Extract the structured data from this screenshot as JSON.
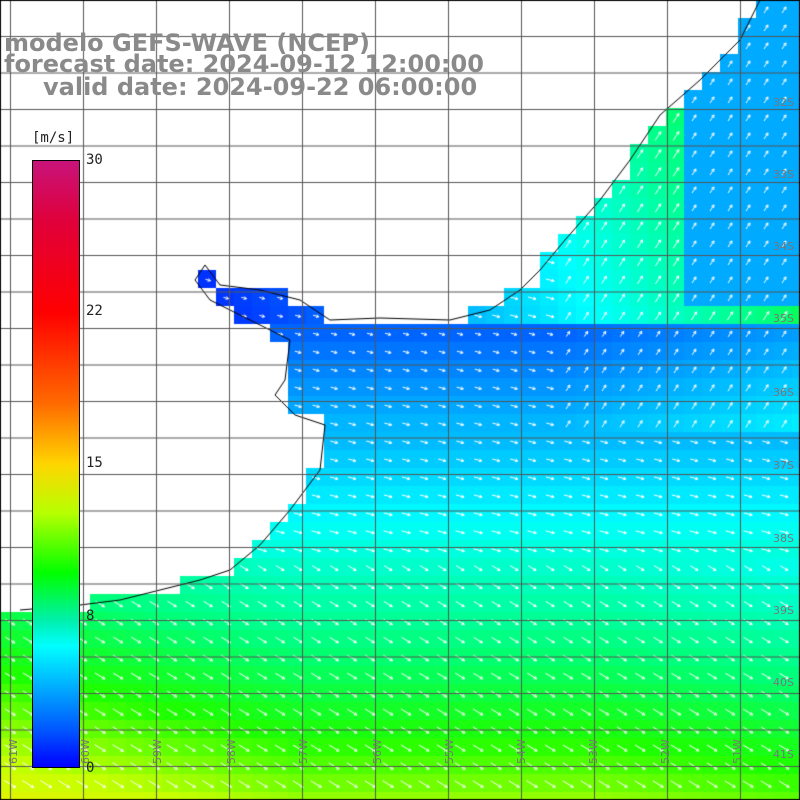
{
  "title": {
    "line1": "modelo GEFS-WAVE (NCEP)",
    "line2": "forecast date: 2024-09-12 12:00:00",
    "line3": "valid date: 2024-09-22 06:00:00"
  },
  "colorbar": {
    "unit": "[m/s]",
    "ticks": [
      "30",
      "22",
      "15",
      "8",
      "0"
    ],
    "colors": [
      "#c8137a",
      "#ff0000",
      "#ff6a00",
      "#ffd500",
      "#00ff00",
      "#00ffff",
      "#0055ff",
      "#0000ff"
    ]
  },
  "lat_labels": [
    "32S",
    "33S",
    "34S",
    "35S",
    "36S",
    "37S",
    "38S",
    "39S",
    "40S",
    "41S"
  ],
  "lon_labels": [
    "61W",
    "60W",
    "59W",
    "58W",
    "57W",
    "56W",
    "55W",
    "54W",
    "53W",
    "52W",
    "51W"
  ],
  "map": {
    "land_color": "#ffffff",
    "grid_color": "#555555",
    "arrow_color": "#ffffff"
  }
}
